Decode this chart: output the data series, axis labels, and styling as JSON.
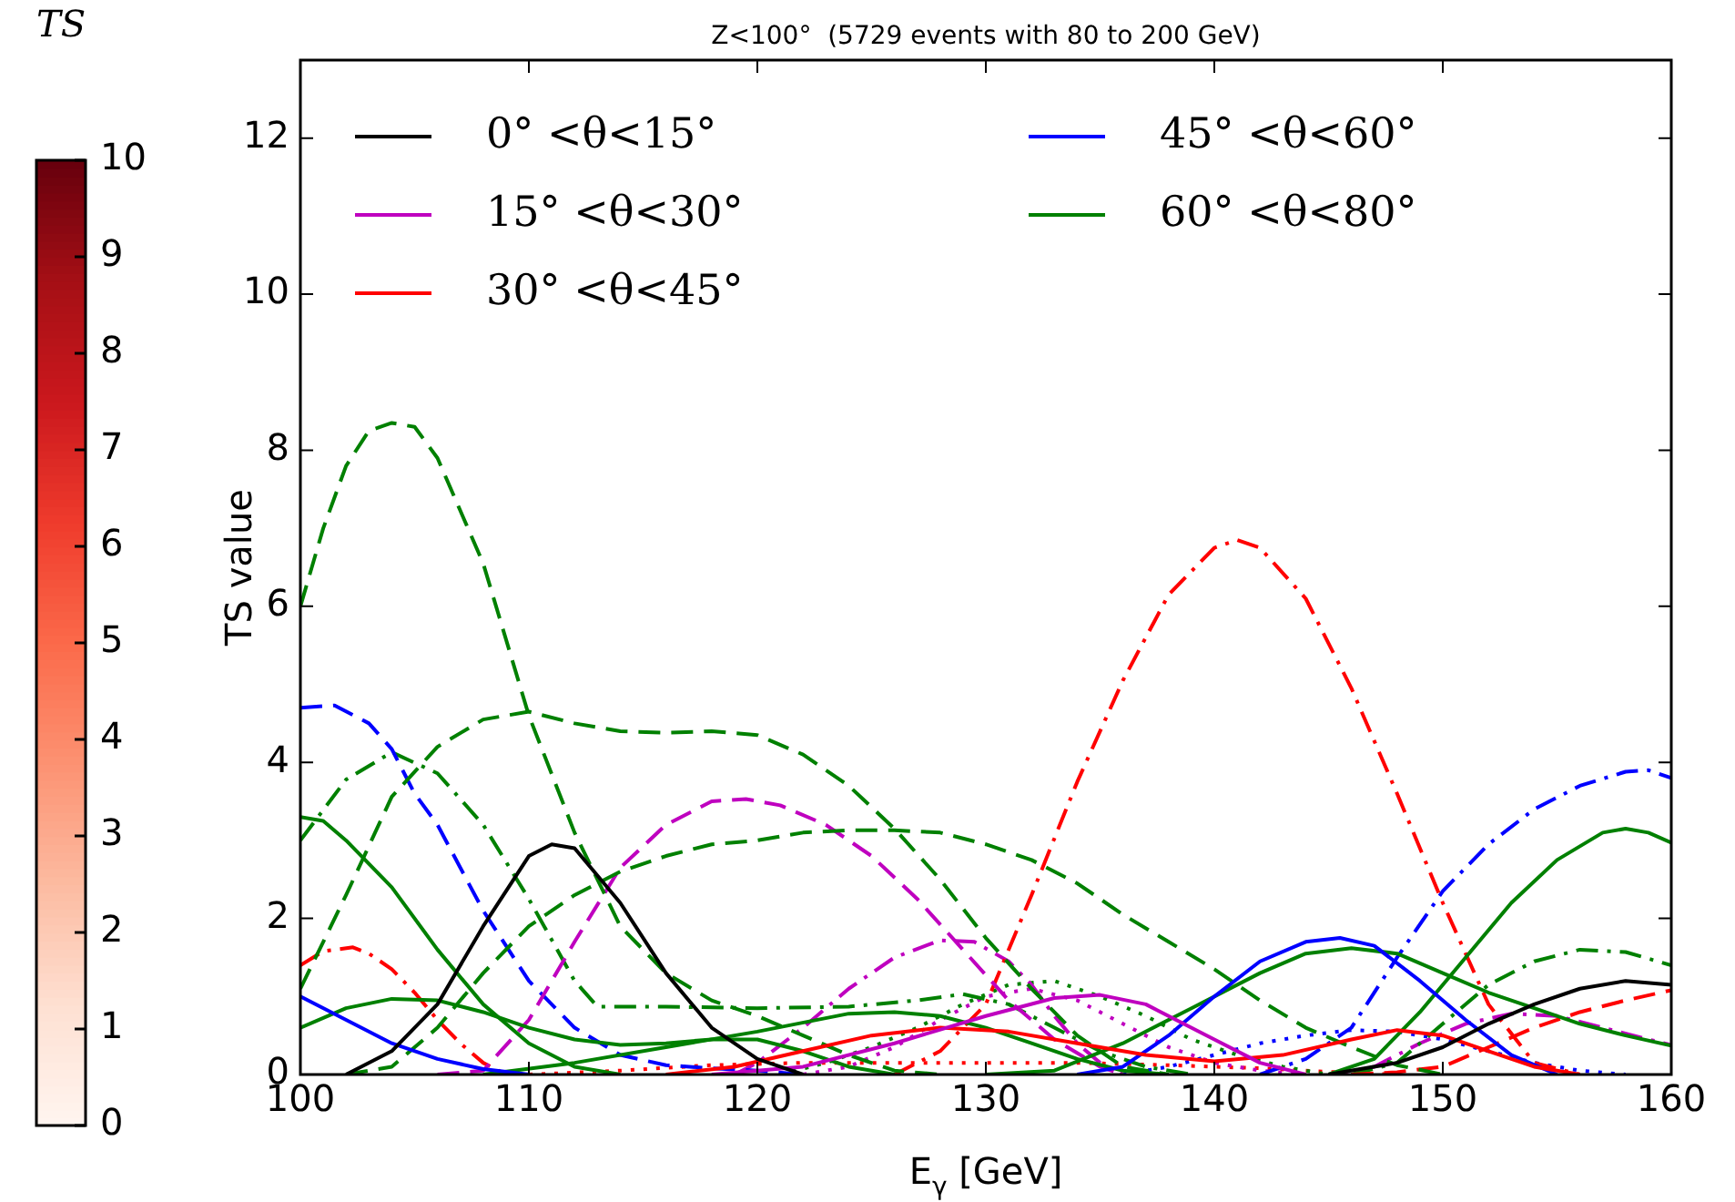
{
  "chart_data": {
    "type": "line",
    "title": "Z<100°  (5729 events with 80 to 200 GeV)",
    "xlabel": "E$_{γ}$ [GeV]",
    "ylabel": "TS value",
    "clabel": "TS",
    "clim": [
      0,
      10
    ],
    "cticks": [
      0,
      1,
      2,
      3,
      4,
      5,
      6,
      7,
      8,
      9,
      10
    ],
    "xlim": [
      100,
      160
    ],
    "xticks": [
      100,
      110,
      120,
      130,
      140,
      150,
      160
    ],
    "ylim": [
      0,
      13
    ],
    "yticks": [
      0,
      2,
      4,
      6,
      8,
      10,
      12
    ],
    "grid": false,
    "legend": "top left",
    "marker": "none",
    "series": [
      {
        "name": "0° <θ<15°",
        "color": "#000000",
        "line_style": "solid",
        "x": [
          102,
          104,
          106,
          108,
          110,
          111,
          112,
          114,
          116,
          118,
          120,
          122,
          133,
          145,
          148,
          150,
          152,
          154,
          156,
          158,
          160
        ],
        "values": [
          0,
          0.3,
          0.9,
          1.9,
          2.8,
          2.95,
          2.9,
          2.2,
          1.3,
          0.6,
          0.2,
          0,
          null,
          0,
          0.15,
          0.35,
          0.65,
          0.9,
          1.1,
          1.2,
          1.15
        ]
      },
      {
        "name": "15° <θ<30°",
        "color": "#bf00bf",
        "line_style": "solid",
        "x": [
          118,
          122,
          126,
          130,
          133,
          135,
          137,
          140,
          142,
          144
        ],
        "values": [
          0,
          0.1,
          0.4,
          0.75,
          0.98,
          1.02,
          0.9,
          0.45,
          0.15,
          0
        ]
      },
      {
        "name": "30° <θ<45°",
        "color": "#ff0000",
        "line_style": "solid",
        "x": [
          116,
          119,
          122,
          125,
          128,
          131,
          134,
          137,
          140,
          143,
          146,
          148,
          150,
          152,
          154,
          156
        ],
        "values": [
          0,
          0.1,
          0.3,
          0.5,
          0.6,
          0.55,
          0.4,
          0.25,
          0.17,
          0.25,
          0.45,
          0.57,
          0.5,
          0.3,
          0.1,
          0
        ]
      },
      {
        "name": "45° <θ<60°",
        "color": "#0000ff",
        "line_style": "solid",
        "x": [
          100,
          102,
          104,
          106,
          108,
          110,
          122,
          134,
          136,
          138,
          140,
          142,
          144,
          145.5,
          147,
          149,
          151,
          153,
          155
        ],
        "values": [
          1.0,
          0.7,
          0.4,
          0.2,
          0.07,
          0,
          null,
          0,
          0.1,
          0.5,
          1.0,
          1.45,
          1.7,
          1.75,
          1.65,
          1.2,
          0.7,
          0.25,
          0
        ]
      },
      {
        "name": "60° <θ<80°",
        "color": "#008000",
        "line_style": "solid",
        "x": [
          100,
          101,
          102,
          104,
          106,
          108,
          110,
          112,
          114
        ],
        "values": [
          3.3,
          3.25,
          3.0,
          2.4,
          1.6,
          0.9,
          0.4,
          0.1,
          0
        ]
      },
      {
        "color": "#008000",
        "line_style": "solid",
        "x": [
          100,
          102,
          104,
          106,
          108,
          110,
          112,
          114,
          116,
          118,
          120,
          122,
          124,
          126
        ],
        "values": [
          0.6,
          0.85,
          0.97,
          0.95,
          0.8,
          0.6,
          0.45,
          0.38,
          0.4,
          0.45,
          0.45,
          0.3,
          0.1,
          0
        ]
      },
      {
        "color": "#008000",
        "line_style": "solid",
        "x": [
          108,
          112,
          116,
          120,
          124,
          126,
          128,
          130,
          132,
          134,
          136,
          138
        ],
        "values": [
          0,
          0.15,
          0.35,
          0.55,
          0.78,
          0.8,
          0.75,
          0.6,
          0.4,
          0.2,
          0.05,
          0
        ]
      },
      {
        "color": "#008000",
        "line_style": "solid",
        "x": [
          130,
          133,
          136,
          139,
          142,
          144,
          146,
          148,
          150,
          152,
          154,
          156,
          158,
          160
        ],
        "values": [
          0,
          0.05,
          0.4,
          0.85,
          1.3,
          1.55,
          1.62,
          1.55,
          1.3,
          1.05,
          0.85,
          0.65,
          0.5,
          0.37
        ]
      },
      {
        "color": "#008000",
        "line_style": "solid",
        "x": [
          145,
          147,
          149,
          151,
          153,
          155,
          157,
          158,
          159,
          160
        ],
        "values": [
          0,
          0.2,
          0.8,
          1.5,
          2.2,
          2.75,
          3.1,
          3.15,
          3.1,
          2.97
        ]
      },
      {
        "color": "#008000",
        "line_style": "dashed",
        "x": [
          100,
          101,
          102,
          103,
          104,
          105,
          106,
          108,
          110,
          112,
          114,
          116,
          118,
          120,
          122,
          124,
          126,
          128
        ],
        "values": [
          6.0,
          7.0,
          7.8,
          8.25,
          8.35,
          8.3,
          7.9,
          6.55,
          4.6,
          3.1,
          1.9,
          1.3,
          0.95,
          0.75,
          0.5,
          0.25,
          0.05,
          0
        ]
      },
      {
        "color": "#008000",
        "line_style": "dashed",
        "x": [
          100,
          102,
          104,
          106,
          108,
          110,
          112,
          114,
          116,
          118,
          120,
          122,
          124,
          126,
          128,
          130,
          132,
          134,
          136,
          138
        ],
        "values": [
          1.1,
          2.3,
          3.56,
          4.2,
          4.55,
          4.65,
          4.5,
          4.4,
          4.38,
          4.4,
          4.35,
          4.1,
          3.7,
          3.15,
          2.5,
          1.75,
          1.1,
          0.5,
          0.1,
          0
        ]
      },
      {
        "color": "#008000",
        "line_style": "dashed",
        "x": [
          102,
          104,
          106,
          108,
          110,
          112,
          114,
          116,
          118,
          120,
          122,
          124,
          126,
          128,
          130,
          132,
          134,
          136,
          138,
          140,
          142,
          144,
          146,
          148,
          150
        ],
        "values": [
          0,
          0.1,
          0.6,
          1.3,
          1.9,
          2.3,
          2.6,
          2.8,
          2.95,
          3.0,
          3.1,
          3.13,
          3.13,
          3.1,
          2.95,
          2.75,
          2.45,
          2.05,
          1.7,
          1.35,
          0.95,
          0.6,
          0.35,
          0.12,
          0
        ]
      },
      {
        "color": "#bf00bf",
        "line_style": "dashed",
        "x": [
          106,
          108,
          110,
          112,
          114,
          116,
          118,
          119.5,
          121,
          123,
          125,
          127,
          129,
          131,
          133,
          135,
          136
        ],
        "values": [
          0,
          0.05,
          0.7,
          1.7,
          2.65,
          3.2,
          3.5,
          3.53,
          3.45,
          3.2,
          2.8,
          2.25,
          1.6,
          0.95,
          0.45,
          0.1,
          0
        ]
      },
      {
        "color": "#0000ff",
        "line_style": "dashed",
        "x": [
          100,
          101.5,
          103,
          104,
          105,
          106,
          108,
          110,
          112,
          114,
          116,
          118,
          120,
          122
        ],
        "values": [
          4.7,
          4.73,
          4.5,
          4.17,
          3.6,
          3.2,
          2.1,
          1.2,
          0.6,
          0.25,
          0.12,
          0.08,
          0.05,
          0
        ]
      },
      {
        "color": "#ff0000",
        "line_style": "dashed",
        "x": [
          146,
          148,
          150,
          152,
          154,
          156,
          158,
          160
        ],
        "values": [
          0,
          0.03,
          0.1,
          0.35,
          0.6,
          0.8,
          0.95,
          1.08
        ]
      },
      {
        "color": "#ff0000",
        "line_style": "dashdot",
        "x": [
          126,
          128,
          130,
          132,
          134,
          136,
          138,
          140,
          141,
          142,
          144,
          146,
          148,
          150,
          152,
          154,
          156
        ],
        "values": [
          0,
          0.3,
          0.9,
          2.3,
          3.75,
          5.05,
          6.15,
          6.75,
          6.85,
          6.75,
          6.1,
          4.95,
          3.6,
          2.2,
          0.9,
          0.15,
          0
        ]
      },
      {
        "color": "#ff0000",
        "line_style": "dashdot",
        "x": [
          100,
          101,
          102.3,
          103,
          104,
          105,
          106,
          107,
          108,
          109
        ],
        "values": [
          1.4,
          1.58,
          1.63,
          1.55,
          1.35,
          1.05,
          0.7,
          0.4,
          0.15,
          0
        ]
      },
      {
        "color": "#0000ff",
        "line_style": "dashdot",
        "x": [
          142,
          144,
          146,
          148,
          150,
          152,
          154,
          156,
          158,
          159,
          160
        ],
        "values": [
          0,
          0.2,
          0.6,
          1.5,
          2.35,
          2.95,
          3.4,
          3.7,
          3.88,
          3.9,
          3.8
        ]
      },
      {
        "color": "#008000",
        "line_style": "dashdot",
        "x": [
          100,
          102,
          104,
          106,
          108,
          110,
          112,
          113,
          116,
          120,
          124,
          127,
          129,
          131,
          133,
          135,
          137,
          139
        ],
        "values": [
          3.0,
          3.78,
          4.13,
          3.86,
          3.2,
          2.25,
          1.2,
          0.87,
          0.87,
          0.85,
          0.87,
          0.95,
          1.03,
          0.9,
          0.6,
          0.3,
          0.1,
          0
        ]
      },
      {
        "color": "#008000",
        "line_style": "dashdot",
        "x": [
          146,
          148,
          150,
          152,
          154,
          156,
          158,
          160
        ],
        "values": [
          0,
          0.15,
          0.65,
          1.15,
          1.45,
          1.6,
          1.57,
          1.4
        ]
      },
      {
        "color": "#bf00bf",
        "line_style": "dashdot",
        "x": [
          119,
          120,
          122,
          124,
          126,
          128,
          129.5,
          131,
          132,
          133,
          134,
          135,
          136
        ],
        "values": [
          0,
          0.15,
          0.6,
          1.1,
          1.5,
          1.72,
          1.7,
          1.45,
          1.15,
          0.75,
          0.4,
          0.15,
          0
        ]
      },
      {
        "color": "#bf00bf",
        "line_style": "dashdot",
        "x": [
          145,
          147,
          149,
          151,
          153,
          155,
          157,
          159,
          160
        ],
        "values": [
          0,
          0.1,
          0.4,
          0.65,
          0.78,
          0.75,
          0.6,
          0.45,
          0.38
        ]
      },
      {
        "color": "#008000",
        "line_style": "dotted",
        "x": [
          121,
          123,
          125,
          127,
          129,
          131,
          133,
          135,
          137,
          139,
          141,
          143,
          145
        ],
        "values": [
          0,
          0.15,
          0.35,
          0.6,
          0.9,
          1.15,
          1.2,
          1.0,
          0.75,
          0.45,
          0.25,
          0.1,
          0
        ]
      },
      {
        "color": "#bf00bf",
        "line_style": "dotted",
        "x": [
          122,
          124,
          126,
          128,
          130,
          132,
          134,
          136,
          138,
          140,
          142,
          144
        ],
        "values": [
          0,
          0.1,
          0.35,
          0.7,
          1.0,
          1.1,
          0.95,
          0.65,
          0.35,
          0.15,
          0.05,
          0
        ]
      },
      {
        "color": "#ff0000",
        "line_style": "dotted",
        "x": [
          110,
          114,
          118,
          122,
          126,
          130,
          134,
          138,
          142,
          146,
          148
        ],
        "values": [
          0,
          0.05,
          0.12,
          0.15,
          0.15,
          0.15,
          0.15,
          0.12,
          0.08,
          0.02,
          0
        ]
      },
      {
        "color": "#0000ff",
        "line_style": "dotted",
        "x": [
          136,
          138,
          140,
          142,
          144,
          146,
          148,
          150,
          152,
          154,
          156,
          158
        ],
        "values": [
          0,
          0.1,
          0.25,
          0.4,
          0.5,
          0.57,
          0.55,
          0.45,
          0.3,
          0.15,
          0.05,
          0
        ]
      }
    ]
  }
}
